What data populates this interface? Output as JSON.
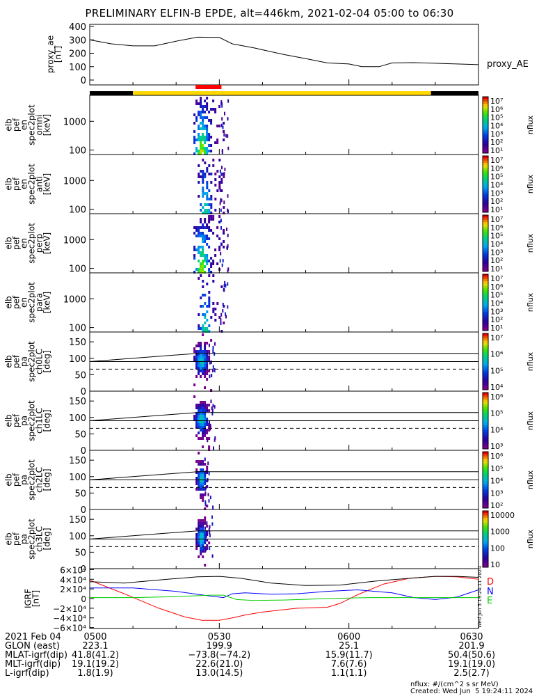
{
  "title": "PRELIMINARY ELFIN-B EPDE, alt=446km, 2021-02-04 05:00 to 06:30",
  "chart_data": [
    {
      "type": "line",
      "ylabel": "proxy_ae\n[nT]",
      "legend": "proxy_AE",
      "ylim": [
        0,
        400
      ],
      "yticks": [
        0,
        100,
        200,
        300,
        400
      ],
      "x_minutes": [
        0,
        5,
        10,
        15,
        20,
        25,
        30,
        33,
        38,
        45,
        50,
        55,
        60,
        63,
        67,
        70,
        75,
        80,
        85,
        90
      ],
      "values": [
        300,
        270,
        255,
        255,
        290,
        320,
        318,
        270,
        240,
        190,
        160,
        128,
        120,
        100,
        100,
        128,
        130,
        125,
        120,
        115
      ]
    },
    {
      "type": "bar",
      "name": "orbit-state-bar",
      "segments": [
        {
          "start": 0,
          "end": 10,
          "color": "#000000"
        },
        {
          "start": 10,
          "end": 79,
          "color": "#ffd800"
        },
        {
          "start": 79,
          "end": 90,
          "color": "#000000"
        }
      ],
      "marker": {
        "start": 24.5,
        "end": 30.5,
        "color": "#ff0000"
      }
    },
    {
      "type": "heatmap",
      "ylabel": "elb\npef\nen\nspec2plot\nomni\n[keV]",
      "yscale": "log",
      "ylim": [
        70,
        8000
      ],
      "yticks": [
        100,
        1000
      ],
      "zlabel": "nflux",
      "zticks": [
        "10⁷",
        "10⁶",
        "10⁵",
        "10⁴",
        "10³",
        "10²",
        "10¹"
      ],
      "x_range_minutes": [
        24,
        31
      ],
      "intensity": "strong"
    },
    {
      "type": "heatmap",
      "ylabel": "elb\npef\nen\nspec2plot\nanti\n[keV]",
      "yscale": "log",
      "ylim": [
        70,
        8000
      ],
      "yticks": [
        100,
        1000
      ],
      "zlabel": "nflux",
      "zticks": [
        "10⁷",
        "10⁶",
        "10⁵",
        "10⁴",
        "10³",
        "10²",
        "10¹"
      ],
      "x_range_minutes": [
        25,
        31
      ],
      "intensity": "weak"
    },
    {
      "type": "heatmap",
      "ylabel": "elb\npef\nen\nspec2plot\nperp\n[keV]",
      "yscale": "log",
      "ylim": [
        70,
        8000
      ],
      "yticks": [
        100,
        1000
      ],
      "zlabel": "nflux",
      "zticks": [
        "10⁷",
        "10⁶",
        "10⁵",
        "10⁴",
        "10³",
        "10²",
        "10¹"
      ],
      "x_range_minutes": [
        24,
        31
      ],
      "intensity": "strong"
    },
    {
      "type": "heatmap",
      "ylabel": "elb\npef\nen\nspec2plot\npara\n[keV]",
      "yscale": "log",
      "ylim": [
        70,
        8000
      ],
      "yticks": [
        100,
        1000
      ],
      "zlabel": "nflux",
      "zticks": [
        "10⁷",
        "10⁶",
        "10⁵",
        "10⁴",
        "10³",
        "10²",
        "10¹"
      ],
      "x_range_minutes": [
        25,
        31
      ],
      "intensity": "weak"
    },
    {
      "type": "heatmap",
      "ylabel": "elb\npef\npa\nspec2plot\nch0LC\n[deg]",
      "ylim": [
        0,
        180
      ],
      "yticks": [
        0,
        50,
        100,
        150
      ],
      "zlabel": "nflux",
      "zticks": [
        "10⁷",
        "10⁶",
        "10⁵",
        "10⁴"
      ],
      "x_range_minutes": [
        24,
        28
      ],
      "lines": {
        "losscone_start": 90,
        "losscone_end": 115,
        "ninety": 90,
        "antilosscone": 67
      }
    },
    {
      "type": "heatmap",
      "ylabel": "elb\npef\npa\nspec2plot\nch1LC\n[deg]",
      "ylim": [
        0,
        180
      ],
      "yticks": [
        0,
        50,
        100,
        150
      ],
      "zlabel": "nflux",
      "zticks": [
        "10⁶",
        "10⁵",
        "10⁴",
        "10³"
      ],
      "x_range_minutes": [
        24,
        28
      ],
      "lines": {
        "losscone_start": 90,
        "losscone_end": 115,
        "ninety": 90,
        "antilosscone": 67
      }
    },
    {
      "type": "heatmap",
      "ylabel": "elb\npef\npa\nspec2plot\nch2LC\n[deg]",
      "ylim": [
        0,
        180
      ],
      "yticks": [
        0,
        50,
        100,
        150
      ],
      "zlabel": "nflux",
      "zticks": [
        "10⁶",
        "10⁵",
        "10⁴",
        "10³",
        "10²"
      ],
      "x_range_minutes": [
        24.5,
        27.5
      ],
      "lines": {
        "losscone_start": 90,
        "losscone_end": 115,
        "ninety": 90,
        "antilosscone": 67
      }
    },
    {
      "type": "heatmap",
      "ylabel": "elb\npef\npa\nspec2plot\nch3LC\n[deg]",
      "ylim": [
        0,
        180
      ],
      "yticks": [
        0,
        50,
        100,
        150
      ],
      "zlabel": "nflux",
      "zticks": [
        "10000",
        "1000",
        "100",
        "10"
      ],
      "x_range_minutes": [
        24.5,
        27.5
      ],
      "lines": {
        "losscone_start": 90,
        "losscone_end": 115,
        "ninety": 90,
        "antilosscone": 67
      }
    },
    {
      "type": "line",
      "ylabel": "IGRF\n[nT]",
      "ylim": [
        -62000,
        62000
      ],
      "yticks": [
        "6×10⁴",
        "4×10⁴",
        "2×10⁴",
        "0",
        "−2×10⁴",
        "−4×10⁴",
        "−6×10⁴"
      ],
      "ytick_values": [
        60000,
        40000,
        20000,
        0,
        -20000,
        -40000,
        -60000
      ],
      "series": [
        {
          "name": "D",
          "color": "#ff0000",
          "x": [
            0,
            8,
            16,
            22,
            26,
            30,
            33,
            36,
            40,
            48,
            55,
            58,
            62,
            68,
            74,
            80,
            85,
            90
          ],
          "y": [
            38000,
            10000,
            -20000,
            -38000,
            -45000,
            -45000,
            -40000,
            -34000,
            -28000,
            -20000,
            -18000,
            -10000,
            8000,
            30000,
            42000,
            46000,
            45000,
            40000
          ]
        },
        {
          "name": "N",
          "color": "#0000ff",
          "x": [
            0,
            10,
            20,
            28,
            31,
            33,
            36,
            42,
            48,
            55,
            62,
            70,
            75,
            80,
            85,
            90
          ],
          "y": [
            22000,
            22000,
            15000,
            5000,
            2000,
            10000,
            12000,
            9000,
            10000,
            15000,
            18000,
            12000,
            2000,
            -2000,
            3000,
            18000
          ]
        },
        {
          "name": "E",
          "color": "#00cc00",
          "x": [
            0,
            10,
            20,
            28,
            31,
            34,
            38,
            45,
            55,
            65,
            75,
            85,
            90
          ],
          "y": [
            2000,
            2000,
            4000,
            7000,
            7000,
            -2000,
            -4000,
            -3000,
            0,
            2000,
            2000,
            2000,
            2000
          ]
        },
        {
          "name": "",
          "color": "#000000",
          "x": [
            0,
            8,
            18,
            25,
            30,
            35,
            42,
            50,
            58,
            66,
            74,
            80,
            85,
            90
          ],
          "y": [
            35000,
            32000,
            40000,
            45000,
            46000,
            42000,
            32000,
            27000,
            28000,
            36000,
            42000,
            46000,
            46000,
            44000
          ]
        }
      ]
    }
  ],
  "colorbar_label": "nflux",
  "side_stamp": "Wed Jun  5 19:24:11 2024",
  "footer": {
    "rows": [
      {
        "label": "2021 Feb 04",
        "vals": [
          "0500",
          "0530",
          "0600",
          "0630"
        ]
      },
      {
        "label": "GLON (east)",
        "vals": [
          "223.1",
          "199.9",
          "25.1",
          "201.9"
        ]
      },
      {
        "label": "MLAT-igrf(dip)",
        "vals": [
          "41.8(41.2)",
          "−73.8(−74.2)",
          "15.9(11.7)",
          "50.4(50.6)"
        ]
      },
      {
        "label": "MLT-igrf(dip)",
        "vals": [
          "19.1(19.2)",
          "22.6(21.0)",
          "7.6(7.6)",
          "19.1(19.0)"
        ]
      },
      {
        "label": "L-igrf(dip)",
        "vals": [
          "1.8(1.9)",
          "13.0(14.5)",
          "1.1(1.1)",
          "2.5(2.7)"
        ]
      }
    ],
    "units_note": "nflux: #/(cm^2 s sr MeV)",
    "created": "Created: Wed Jun  5 19:24:11 2024"
  }
}
